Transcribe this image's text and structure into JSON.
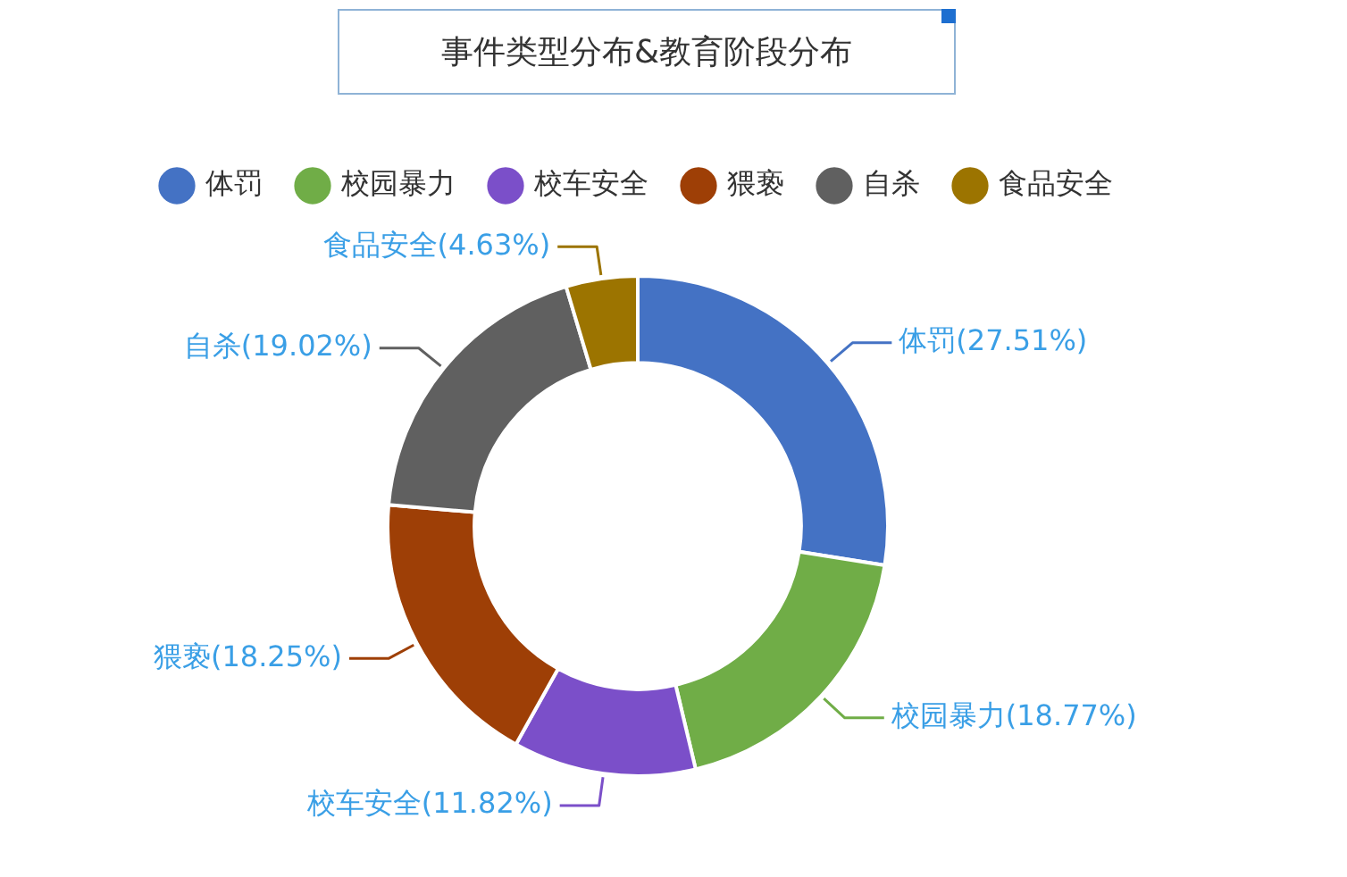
{
  "chart_data": {
    "type": "donut",
    "title": "事件类型分布&教育阶段分布",
    "categories": [
      "体罚",
      "校园暴力",
      "校车安全",
      "猥亵",
      "自杀",
      "食品安全"
    ],
    "values": [
      27.51,
      18.77,
      11.82,
      18.25,
      19.02,
      4.63
    ],
    "colors": [
      "#4472c4",
      "#70ad47",
      "#7b4fc9",
      "#9e3f06",
      "#606060",
      "#9c7400"
    ],
    "value_labels": [
      "体罚(27.51%)",
      "校园暴力(18.77%)",
      "校车安全(11.82%)",
      "猥亵(18.25%)",
      "自杀(19.02%)",
      "食品安全(4.63%)"
    ],
    "legend": "top"
  }
}
